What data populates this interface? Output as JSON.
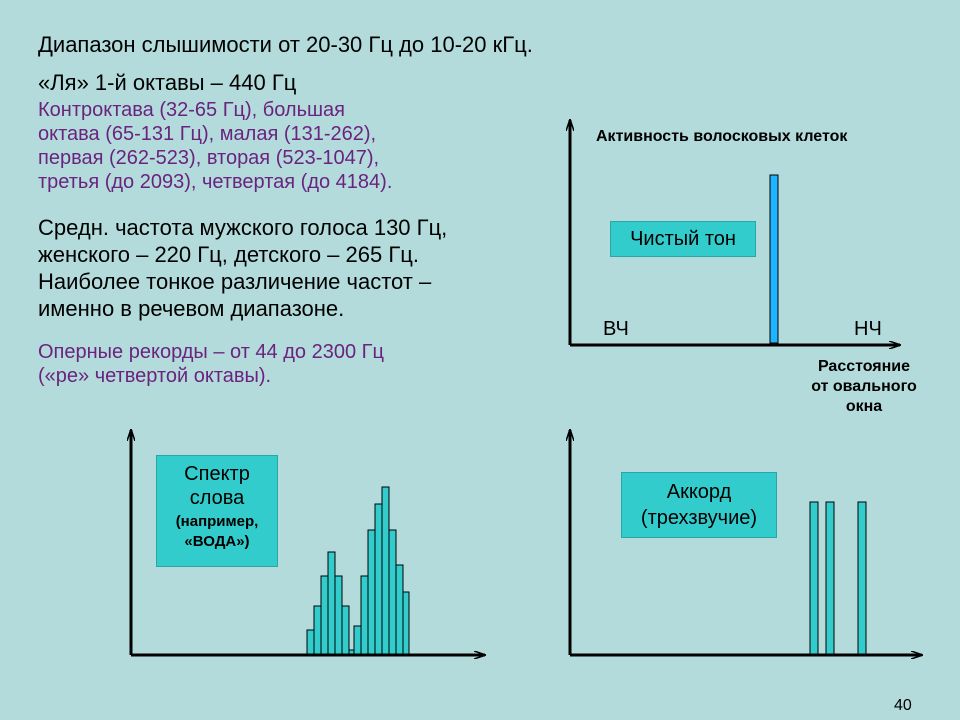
{
  "text": {
    "line1": "Диапазон слышимости от 20-30 Гц до 10-20 кГц.",
    "line2": "«Ля» 1-й октавы – 440 Гц",
    "octaves": [
      "Контроктава (32-65 Гц), большая",
      "октава (65-131 Гц), малая (131-262),",
      "первая (262-523), вторая (523-1047),",
      "третья (до 2093), четвертая (до 4184)."
    ],
    "voice": [
      "Средн. частота мужского голоса 130 Гц,",
      "женского – 220 Гц, детского – 265 Гц.",
      "Наиболее тонкое различение частот –",
      "именно в речевом диапазоне."
    ],
    "opera": [
      "Оперные рекорды – от 44 до 2300 Гц",
      "(«ре» четвертой октавы)."
    ]
  },
  "top_chart": {
    "y_label": "Активность волосковых клеток",
    "box": "Чистый тон",
    "high_label": "ВЧ",
    "low_label": "НЧ",
    "x_label": [
      "Расстояние",
      "от овального",
      "окна"
    ]
  },
  "left_chart": {
    "box_main": [
      "Спектр",
      "слова"
    ],
    "box_sub": [
      "(например,",
      "«ВОДА»)"
    ]
  },
  "right_chart": {
    "box": [
      "Аккорд",
      "(трехзвучие)"
    ]
  },
  "page_number": "40",
  "colors": {
    "background": "#b3dbdb",
    "bar_fill": "#33cccc",
    "pure_tone_bar": "#1fb4ff",
    "accent_text": "#6a237f"
  },
  "icons": [
    "axis-arrow-icon"
  ]
}
